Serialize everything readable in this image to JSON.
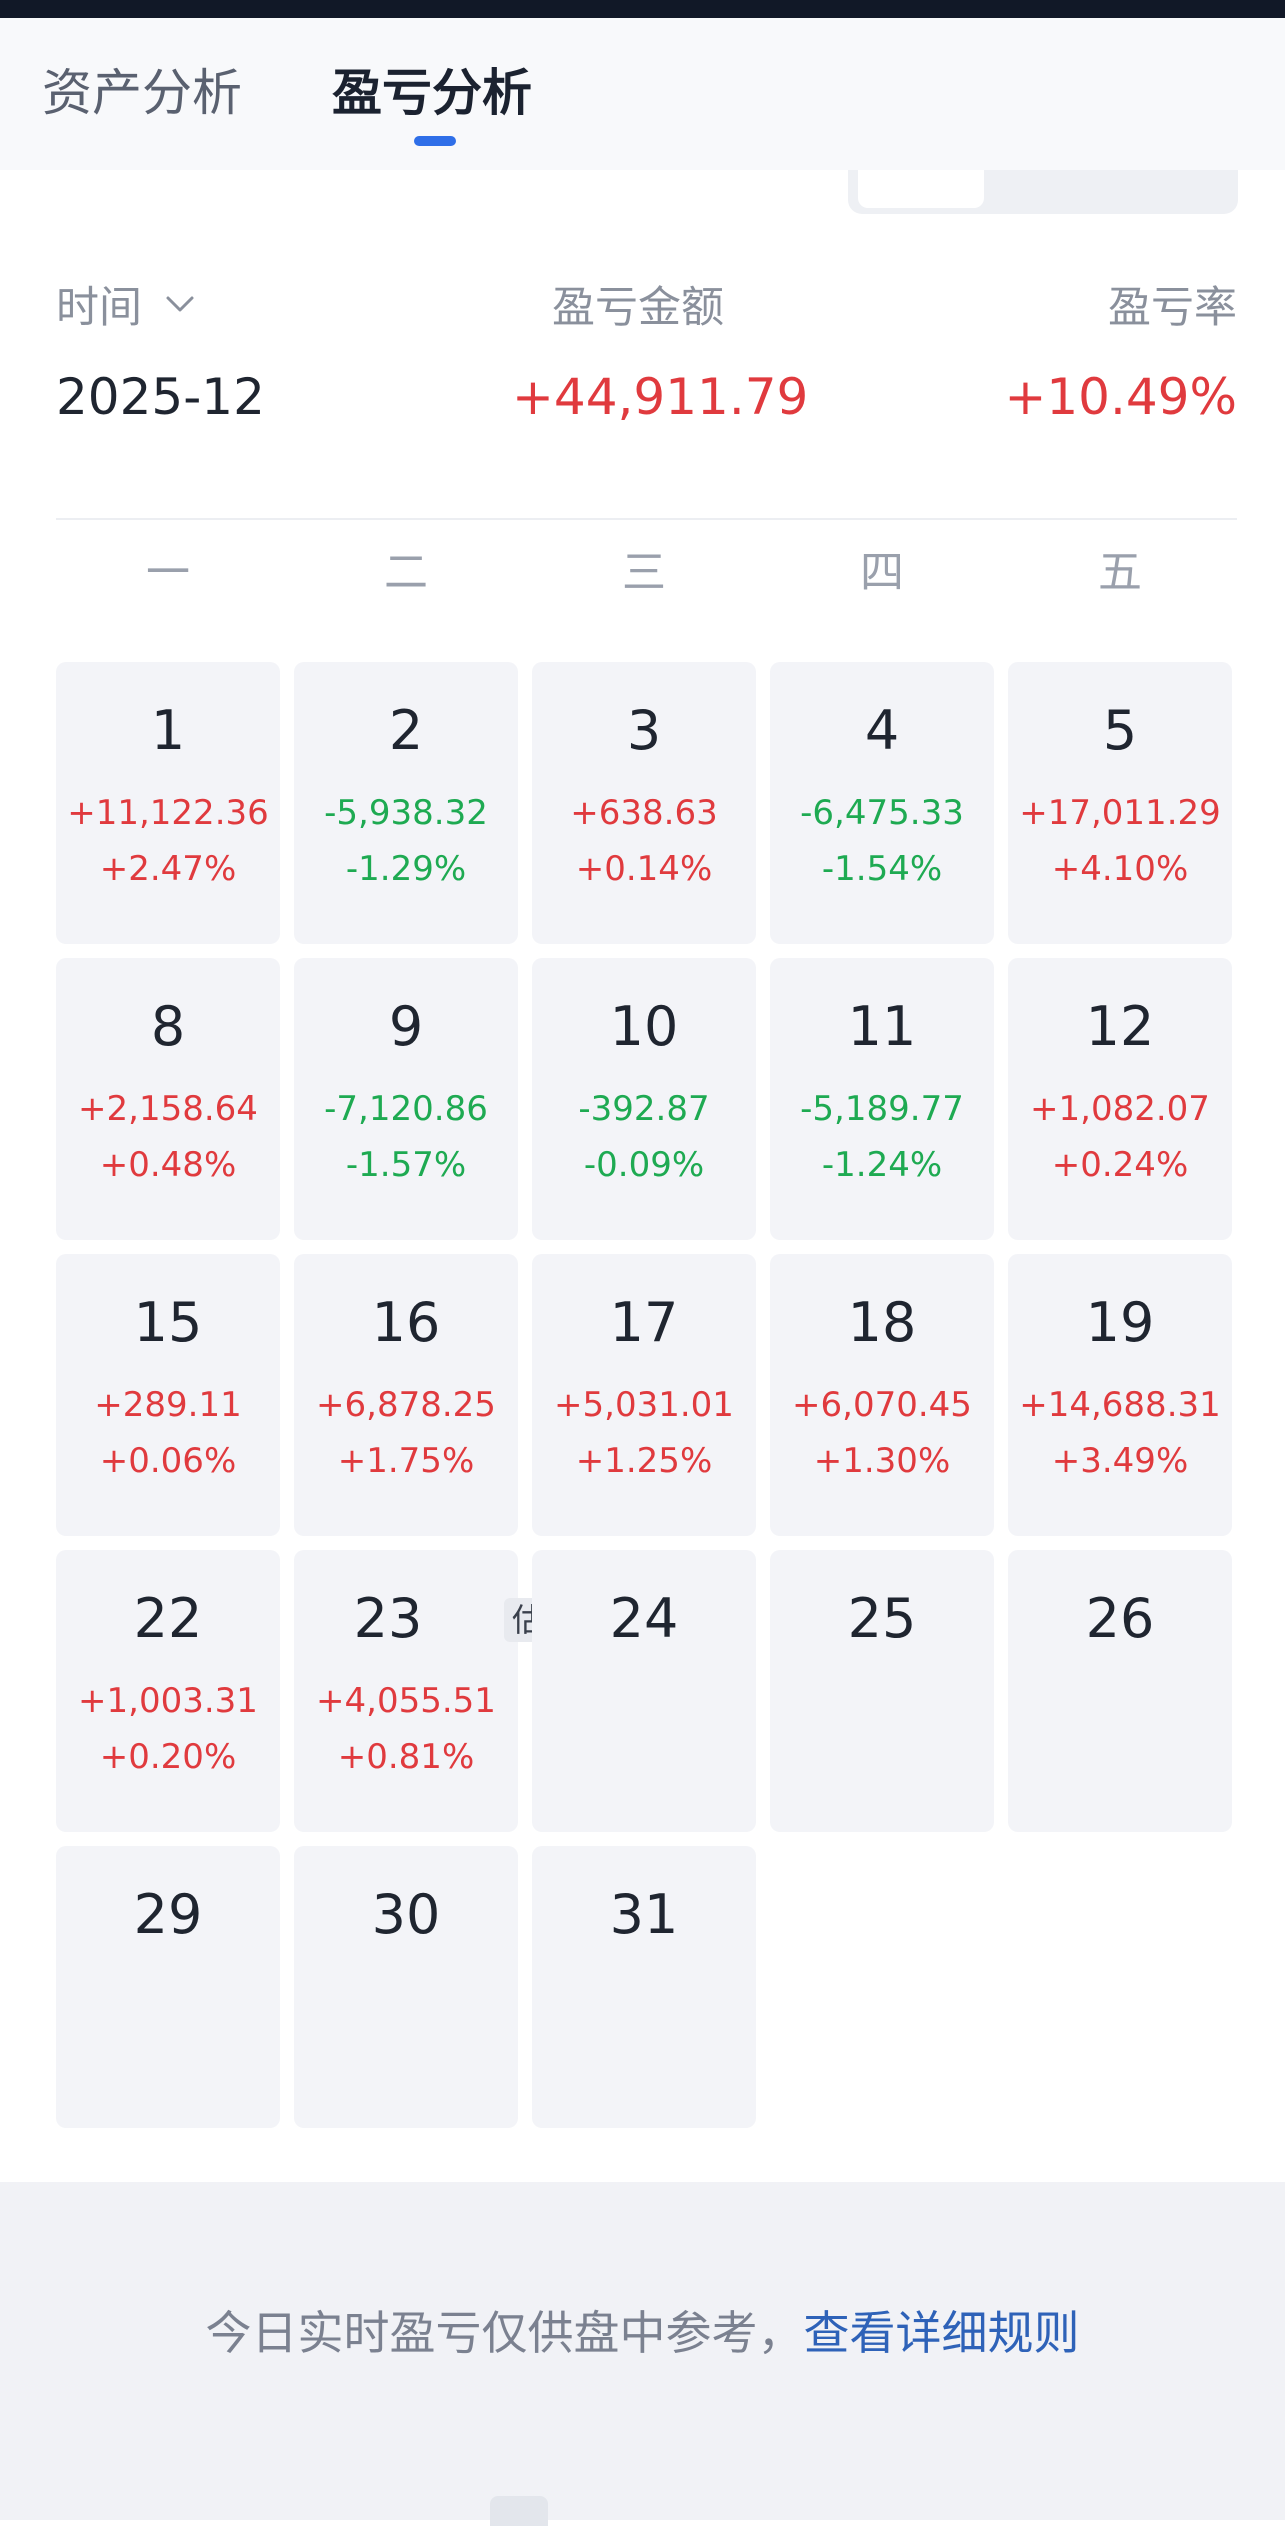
{
  "tabs": {
    "asset_analysis": "资产分析",
    "pnl_analysis": "盈亏分析",
    "active": "pnl_analysis"
  },
  "summary": {
    "time_label": "时间",
    "time_value": "2025-12",
    "amount_label": "盈亏金额",
    "amount_value": "+44,911.79",
    "rate_label": "盈亏率",
    "rate_value": "+10.49%"
  },
  "weekdays": [
    "一",
    "二",
    "三",
    "四",
    "五"
  ],
  "calendar": [
    {
      "day": "1",
      "amount": "+11,122.36",
      "rate": "+2.47%",
      "trend": "up"
    },
    {
      "day": "2",
      "amount": "-5,938.32",
      "rate": "-1.29%",
      "trend": "down"
    },
    {
      "day": "3",
      "amount": "+638.63",
      "rate": "+0.14%",
      "trend": "up"
    },
    {
      "day": "4",
      "amount": "-6,475.33",
      "rate": "-1.54%",
      "trend": "down"
    },
    {
      "day": "5",
      "amount": "+17,011.29",
      "rate": "+4.10%",
      "trend": "up"
    },
    {
      "day": "8",
      "amount": "+2,158.64",
      "rate": "+0.48%",
      "trend": "up"
    },
    {
      "day": "9",
      "amount": "-7,120.86",
      "rate": "-1.57%",
      "trend": "down"
    },
    {
      "day": "10",
      "amount": "-392.87",
      "rate": "-0.09%",
      "trend": "down"
    },
    {
      "day": "11",
      "amount": "-5,189.77",
      "rate": "-1.24%",
      "trend": "down"
    },
    {
      "day": "12",
      "amount": "+1,082.07",
      "rate": "+0.24%",
      "trend": "up"
    },
    {
      "day": "15",
      "amount": "+289.11",
      "rate": "+0.06%",
      "trend": "up"
    },
    {
      "day": "16",
      "amount": "+6,878.25",
      "rate": "+1.75%",
      "trend": "up"
    },
    {
      "day": "17",
      "amount": "+5,031.01",
      "rate": "+1.25%",
      "trend": "up"
    },
    {
      "day": "18",
      "amount": "+6,070.45",
      "rate": "+1.30%",
      "trend": "up"
    },
    {
      "day": "19",
      "amount": "+14,688.31",
      "rate": "+3.49%",
      "trend": "up"
    },
    {
      "day": "22",
      "amount": "+1,003.31",
      "rate": "+0.20%",
      "trend": "up"
    },
    {
      "day": "23",
      "amount": "+4,055.51",
      "rate": "+0.81%",
      "trend": "up",
      "tag": "估"
    },
    {
      "day": "24"
    },
    {
      "day": "25"
    },
    {
      "day": "26"
    },
    {
      "day": "29"
    },
    {
      "day": "30"
    },
    {
      "day": "31"
    }
  ],
  "footer": {
    "note": "今日实时盈亏仅供盘中参考，",
    "link": "查看详细规则"
  },
  "colors": {
    "profit": "#e03a3e",
    "loss": "#1eaa52",
    "accent": "#2f6fe8",
    "link": "#2e62b8"
  }
}
